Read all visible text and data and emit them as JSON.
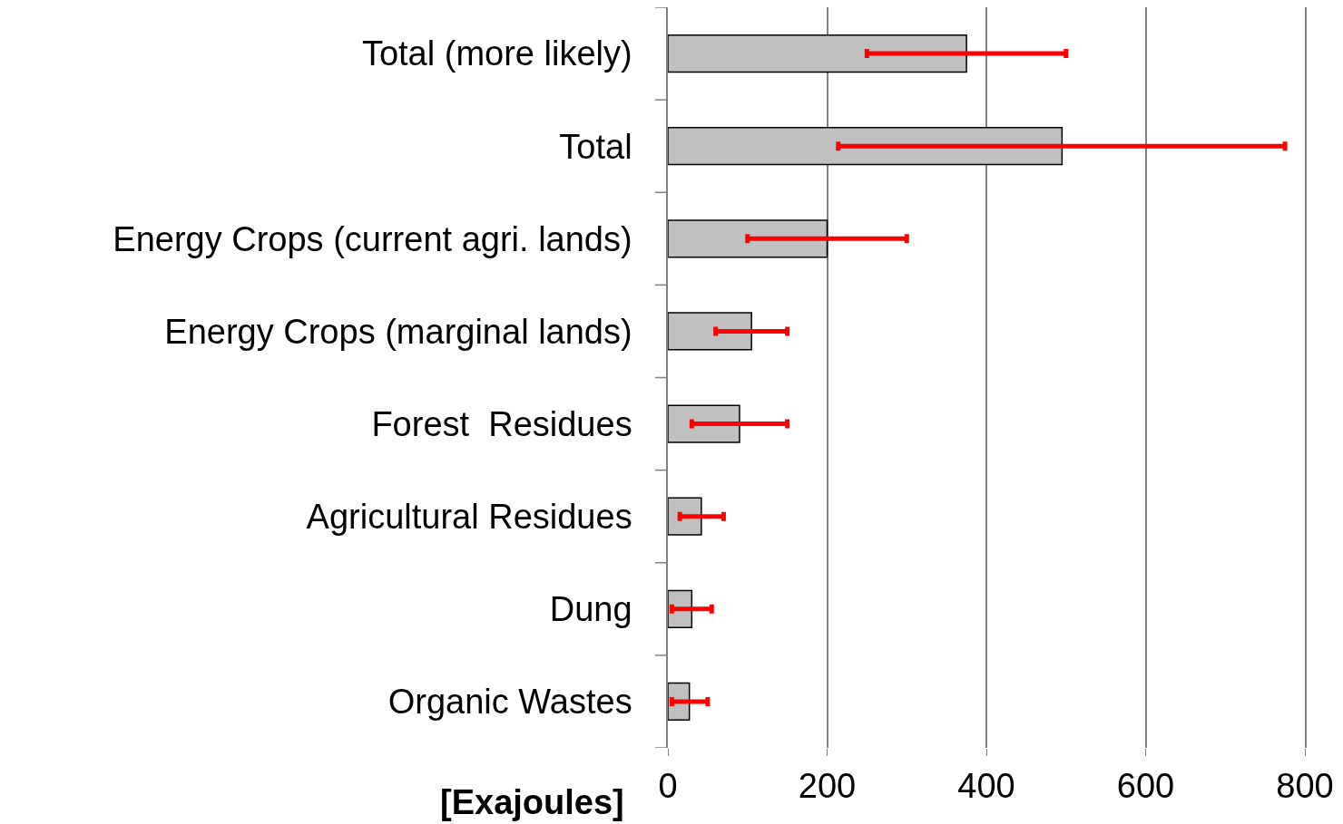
{
  "chart_data": {
    "type": "bar",
    "orientation": "horizontal",
    "categories": [
      "Total (more likely)",
      "Total",
      "Energy Crops (current agri. lands)",
      "Energy Crops (marginal lands)",
      "Forest  Residues",
      "Agricultural Residues",
      "Dung",
      "Organic Wastes"
    ],
    "values": [
      375,
      495,
      200,
      105,
      90,
      42,
      30,
      27
    ],
    "errors": [
      [
        250,
        500
      ],
      [
        214,
        775
      ],
      [
        100,
        300
      ],
      [
        60,
        150
      ],
      [
        30,
        150
      ],
      [
        15,
        70
      ],
      [
        5,
        55
      ],
      [
        5,
        50
      ]
    ],
    "color": "#c0c0c0",
    "xlabel": "[Exajoules]",
    "xlim": [
      0,
      800
    ],
    "xticks": [
      0,
      200,
      400,
      600,
      800
    ],
    "grid": "x",
    "legend": false
  }
}
